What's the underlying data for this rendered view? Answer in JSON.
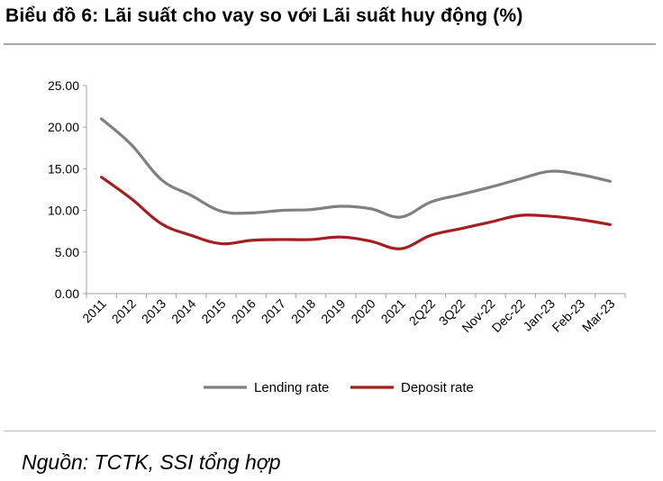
{
  "title": "Biểu đồ 6: Lãi suất cho vay so với Lãi suất huy động (%)",
  "source": "Nguồn: TCTK, SSI tổng hợp",
  "chart_data": {
    "type": "line",
    "categories": [
      "2011",
      "2012",
      "2013",
      "2014",
      "2015",
      "2016",
      "2017",
      "2018",
      "2019",
      "2020",
      "2021",
      "2Q22",
      "3Q22",
      "Nov-22",
      "Dec-22",
      "Jan-23",
      "Feb-23",
      "Mar-23"
    ],
    "ylim": [
      0,
      25
    ],
    "yticks": [
      "0.00",
      "5.00",
      "10.00",
      "15.00",
      "20.00",
      "25.00"
    ],
    "grid": false,
    "legend_position": "bottom",
    "series": [
      {
        "name": "Lending rate",
        "color": "#808080",
        "values": [
          21.0,
          17.9,
          13.7,
          11.8,
          9.9,
          9.7,
          10.0,
          10.1,
          10.5,
          10.2,
          9.2,
          11.0,
          11.9,
          12.8,
          13.8,
          14.7,
          14.3,
          13.5
        ]
      },
      {
        "name": "Deposit rate",
        "color": "#a51e22",
        "values": [
          14.0,
          11.4,
          8.4,
          7.0,
          6.0,
          6.4,
          6.5,
          6.5,
          6.8,
          6.3,
          5.4,
          7.0,
          7.8,
          8.6,
          9.4,
          9.3,
          8.9,
          8.3
        ]
      }
    ]
  }
}
